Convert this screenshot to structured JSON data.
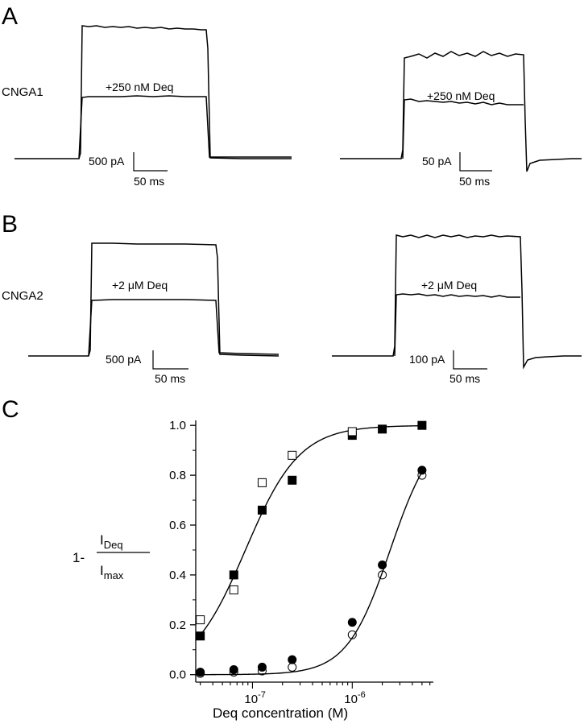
{
  "panels": {
    "A": {
      "letter": "A",
      "row_label": "CNGA1",
      "left": {
        "annotation": "+250 nM Deq",
        "scale_current": "500 pA",
        "scale_time": "50 ms"
      },
      "right": {
        "annotation": "+250 nM Deq",
        "scale_current": "50 pA",
        "scale_time": "50 ms"
      }
    },
    "B": {
      "letter": "B",
      "row_label": "CNGA2",
      "left": {
        "annotation": "+2 μM Deq",
        "scale_current": "500 pA",
        "scale_time": "50 ms"
      },
      "right": {
        "annotation": "+2 μM Deq",
        "scale_current": "100 pA",
        "scale_time": "50 ms"
      }
    },
    "C": {
      "letter": "C"
    }
  },
  "chart_data": {
    "type": "scatter",
    "xlabel": "Deq concentration (M)",
    "ylabel": {
      "prefix": "1-",
      "numerator": "I",
      "numerator_sub": "Deq",
      "denominator": "I",
      "denominator_sub": "max"
    },
    "x_scale": "log",
    "xlim": [
      2.7e-08,
      6.5e-06
    ],
    "ylim": [
      -0.03,
      1.02
    ],
    "x_ticks": [
      {
        "value": 1e-07,
        "base": "10",
        "exp": "-7"
      },
      {
        "value": 1e-06,
        "base": "10",
        "exp": "-6"
      }
    ],
    "y_ticks": [
      "0.0",
      "0.2",
      "0.4",
      "0.6",
      "0.8",
      "1.0"
    ],
    "grid": false,
    "series": [
      {
        "marker": "filled-square",
        "x": [
          3e-08,
          6.5e-08,
          1.25e-07,
          2.5e-07,
          1e-06,
          2e-06,
          5e-06
        ],
        "y": [
          0.155,
          0.4,
          0.66,
          0.78,
          0.96,
          0.985,
          1.0
        ]
      },
      {
        "marker": "open-square",
        "x": [
          3e-08,
          6.5e-08,
          1.25e-07,
          2.5e-07,
          1e-06
        ],
        "y": [
          0.22,
          0.34,
          0.77,
          0.88,
          0.975
        ]
      },
      {
        "marker": "filled-circle",
        "x": [
          3e-08,
          6.5e-08,
          1.25e-07,
          2.5e-07,
          1e-06,
          2e-06,
          5e-06
        ],
        "y": [
          0.01,
          0.02,
          0.03,
          0.06,
          0.21,
          0.44,
          0.82
        ]
      },
      {
        "marker": "open-circle",
        "x": [
          3e-08,
          6.5e-08,
          1.25e-07,
          2.5e-07,
          1e-06,
          2e-06,
          5e-06
        ],
        "y": [
          0.005,
          0.01,
          0.015,
          0.03,
          0.16,
          0.4,
          0.8
        ]
      }
    ],
    "fits": [
      {
        "kind": "hill",
        "K": 8.5e-08,
        "n": 1.6
      },
      {
        "kind": "hill",
        "K": 2.4e-06,
        "n": 2.0
      }
    ]
  }
}
